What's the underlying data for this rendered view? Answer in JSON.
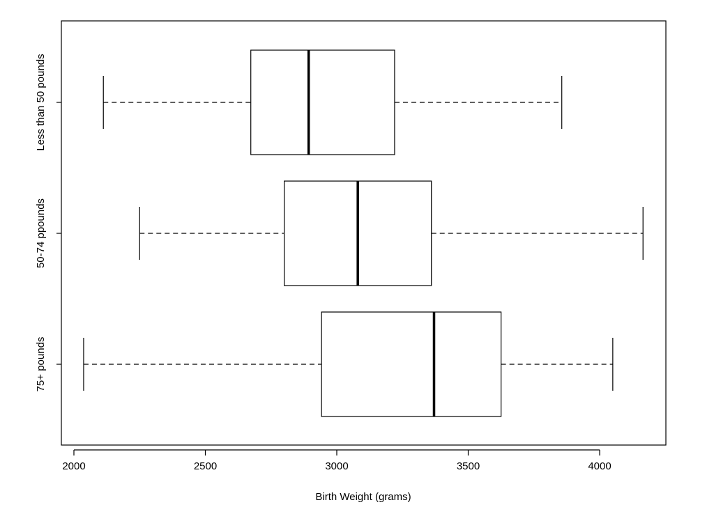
{
  "chart_data": {
    "type": "boxplot",
    "orientation": "horizontal",
    "title": "",
    "xlabel": "Birth Weight (grams)",
    "ylabel": "",
    "xlim": [
      1990,
      4250
    ],
    "xticks": [
      2000,
      2500,
      3000,
      3500,
      4000
    ],
    "grid": false,
    "legend": "none",
    "groups": [
      {
        "label": "Less than 50 pounds",
        "whisker_low": 2112,
        "q1": 2673,
        "median": 2893,
        "q3": 3220,
        "whisker_high": 3856
      },
      {
        "label": "50-74 ppounds",
        "whisker_low": 2250,
        "q1": 2800,
        "median": 3080,
        "q3": 3360,
        "whisker_high": 4165
      },
      {
        "label": "75+ pounds",
        "whisker_low": 2037,
        "q1": 2942,
        "median": 3370,
        "q3": 3625,
        "whisker_high": 4050
      }
    ]
  }
}
